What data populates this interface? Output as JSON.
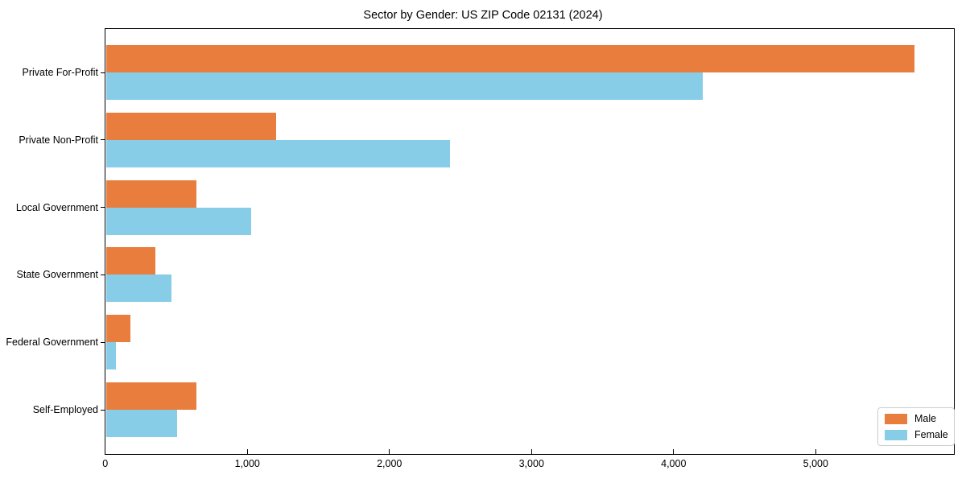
{
  "chart_data": {
    "type": "bar",
    "orientation": "horizontal",
    "title": "Sector by Gender: US ZIP Code 02131 (2024)",
    "categories": [
      "Private For-Profit",
      "Private Non-Profit",
      "Local Government",
      "State Government",
      "Federal Government",
      "Self-Employed"
    ],
    "series": [
      {
        "name": "Male",
        "color": "#e87d3d",
        "values": [
          5690,
          1200,
          640,
          350,
          170,
          640
        ]
      },
      {
        "name": "Female",
        "color": "#87cde8",
        "values": [
          4200,
          2420,
          1020,
          460,
          70,
          500
        ]
      }
    ],
    "xlabel": "",
    "ylabel": "",
    "xlim": [
      0,
      5975
    ],
    "xticks": [
      0,
      1000,
      2000,
      3000,
      4000,
      5000
    ],
    "xtick_labels": [
      "0",
      "1,000",
      "2,000",
      "3,000",
      "4,000",
      "5,000"
    ],
    "grid": false,
    "legend_position": "lower right",
    "frame_color": "#000000",
    "background_color": "#ffffff"
  }
}
